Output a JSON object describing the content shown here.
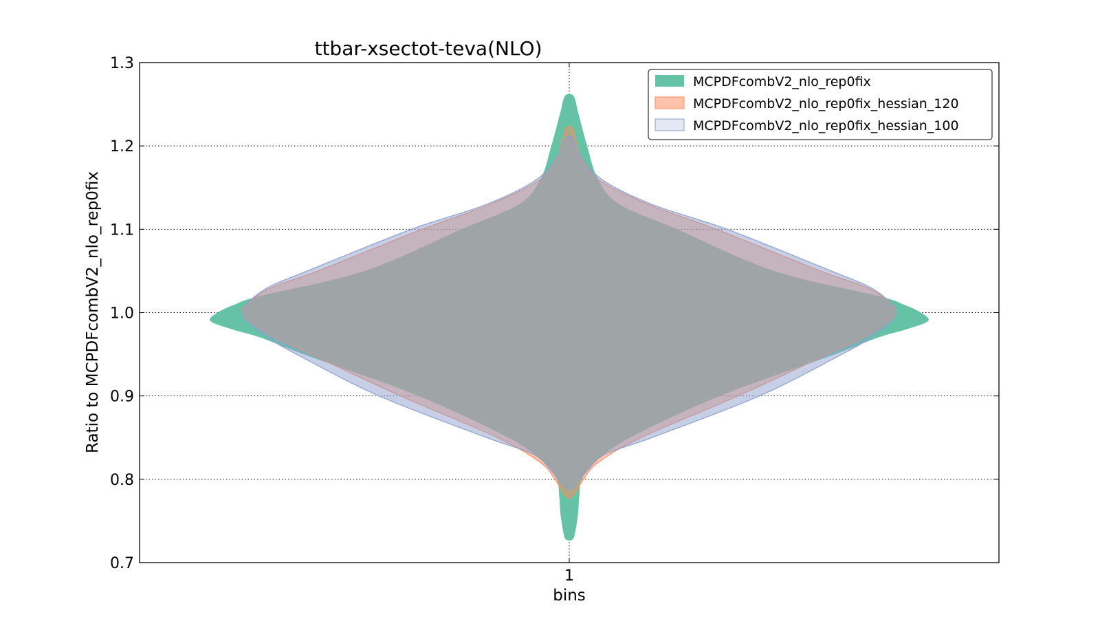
{
  "chart_data": {
    "type": "violin",
    "title": "ttbar-xsectot-teva(NLO)",
    "xlabel": "bins",
    "ylabel": "Ratio to MCPDFcombV2_nlo_rep0fix",
    "categories": [
      "1"
    ],
    "ylim": [
      0.7,
      1.3
    ],
    "yticks": [
      "0.7",
      "0.8",
      "0.9",
      "1.0",
      "1.1",
      "1.2",
      "1.3"
    ],
    "grid": true,
    "legend_position": "top-right",
    "series": [
      {
        "name": "MCPDFcombV2_nlo_rep0fix",
        "color": "#66c2a5",
        "profile": [
          [
            0.728,
            0.01
          ],
          [
            0.74,
            0.018
          ],
          [
            0.76,
            0.025
          ],
          [
            0.78,
            0.028
          ],
          [
            0.8,
            0.035
          ],
          [
            0.82,
            0.07
          ],
          [
            0.85,
            0.17
          ],
          [
            0.9,
            0.42
          ],
          [
            0.95,
            0.74
          ],
          [
            0.97,
            0.86
          ],
          [
            0.98,
            0.94
          ],
          [
            0.99,
            1.0
          ],
          [
            1.0,
            0.98
          ],
          [
            1.01,
            0.93
          ],
          [
            1.02,
            0.86
          ],
          [
            1.05,
            0.57
          ],
          [
            1.1,
            0.3
          ],
          [
            1.13,
            0.14
          ],
          [
            1.16,
            0.08
          ],
          [
            1.2,
            0.05
          ],
          [
            1.24,
            0.025
          ],
          [
            1.26,
            0.012
          ]
        ]
      },
      {
        "name": "MCPDFcombV2_nlo_rep0fix_hessian_120",
        "color": "#fc8d62",
        "profile": [
          [
            0.78,
            0.01
          ],
          [
            0.8,
            0.04
          ],
          [
            0.82,
            0.08
          ],
          [
            0.85,
            0.2
          ],
          [
            0.9,
            0.47
          ],
          [
            0.95,
            0.72
          ],
          [
            0.97,
            0.82
          ],
          [
            0.99,
            0.89
          ],
          [
            1.0,
            0.91
          ],
          [
            1.01,
            0.9
          ],
          [
            1.03,
            0.83
          ],
          [
            1.05,
            0.7
          ],
          [
            1.1,
            0.41
          ],
          [
            1.13,
            0.22
          ],
          [
            1.16,
            0.08
          ],
          [
            1.19,
            0.03
          ],
          [
            1.22,
            0.01
          ]
        ]
      },
      {
        "name": "MCPDFcombV2_nlo_rep0fix_hessian_100",
        "color": "#8da0cb",
        "profile": [
          [
            0.79,
            0.01
          ],
          [
            0.81,
            0.05
          ],
          [
            0.83,
            0.1
          ],
          [
            0.85,
            0.23
          ],
          [
            0.9,
            0.53
          ],
          [
            0.95,
            0.76
          ],
          [
            0.97,
            0.84
          ],
          [
            0.99,
            0.9
          ],
          [
            1.0,
            0.91
          ],
          [
            1.01,
            0.9
          ],
          [
            1.03,
            0.84
          ],
          [
            1.05,
            0.73
          ],
          [
            1.1,
            0.44
          ],
          [
            1.13,
            0.23
          ],
          [
            1.16,
            0.09
          ],
          [
            1.19,
            0.03
          ],
          [
            1.21,
            0.01
          ]
        ]
      }
    ]
  }
}
